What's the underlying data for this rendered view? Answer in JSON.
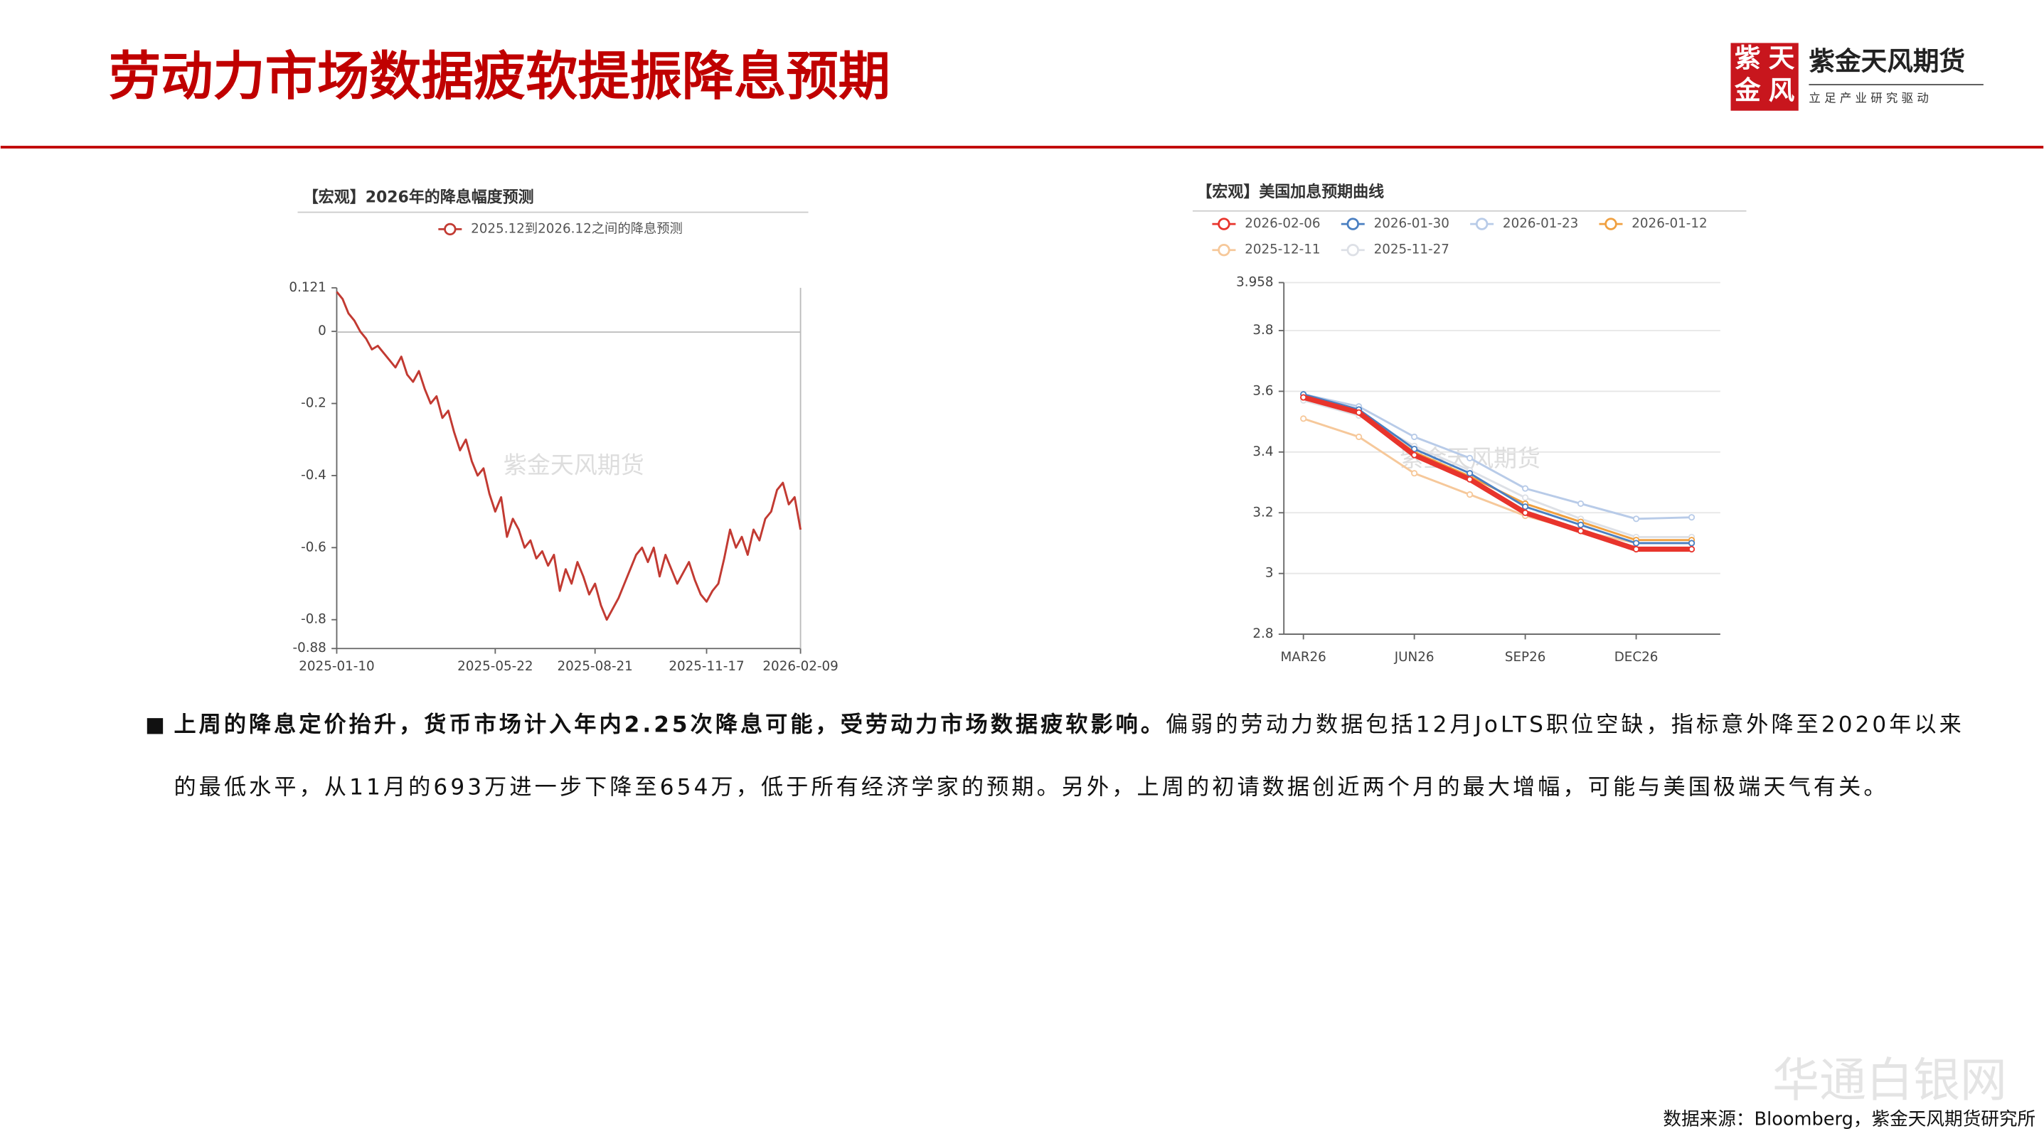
{
  "header": {
    "title": "劳动力市场数据疲软提振降息预期",
    "logo": {
      "seal": [
        "紫",
        "天",
        "金",
        "风"
      ],
      "name": "紫金天风期货",
      "slogan": "立 足 产 业 研 究 驱 动"
    }
  },
  "chart_data": [
    {
      "type": "line",
      "title": "【宏观】2026年的降息幅度预测",
      "watermark": "紫金天风期货",
      "categories": [
        "2025-01-10",
        null,
        null,
        null,
        null,
        null,
        null,
        null,
        null,
        null,
        null,
        null,
        null,
        null,
        null,
        null,
        null,
        null,
        null,
        null,
        null,
        null,
        null,
        null,
        null,
        null,
        null,
        "2025-05-22",
        null,
        null,
        null,
        null,
        null,
        null,
        null,
        null,
        null,
        null,
        null,
        null,
        null,
        null,
        null,
        null,
        "2025-08-21",
        null,
        null,
        null,
        null,
        null,
        null,
        null,
        null,
        null,
        null,
        null,
        null,
        null,
        null,
        null,
        null,
        null,
        null,
        "2025-11-17",
        null,
        null,
        null,
        null,
        null,
        null,
        null,
        null,
        null,
        null,
        null,
        null,
        null,
        null,
        null,
        "2026-02-09"
      ],
      "series": [
        {
          "name": "2025.12到2026.12之间的降息预测",
          "color": "#c23a32",
          "values": [
            0.11,
            0.09,
            0.05,
            0.03,
            0.0,
            -0.02,
            -0.05,
            -0.04,
            -0.06,
            -0.08,
            -0.1,
            -0.07,
            -0.12,
            -0.14,
            -0.11,
            -0.16,
            -0.2,
            -0.18,
            -0.24,
            -0.22,
            -0.28,
            -0.33,
            -0.3,
            -0.36,
            -0.4,
            -0.38,
            -0.45,
            -0.5,
            -0.46,
            -0.57,
            -0.52,
            -0.55,
            -0.6,
            -0.58,
            -0.63,
            -0.61,
            -0.65,
            -0.62,
            -0.72,
            -0.66,
            -0.7,
            -0.64,
            -0.68,
            -0.73,
            -0.7,
            -0.76,
            -0.8,
            -0.77,
            -0.74,
            -0.7,
            -0.66,
            -0.62,
            -0.6,
            -0.64,
            -0.6,
            -0.68,
            -0.62,
            -0.66,
            -0.7,
            -0.67,
            -0.64,
            -0.69,
            -0.73,
            -0.75,
            -0.72,
            -0.7,
            -0.63,
            -0.55,
            -0.6,
            -0.57,
            -0.62,
            -0.55,
            -0.58,
            -0.52,
            -0.5,
            -0.44,
            -0.42,
            -0.48,
            -0.46,
            -0.55
          ]
        }
      ],
      "ylim": [
        -0.88,
        0.121
      ],
      "yticks": [
        0.121,
        0,
        -0.2,
        -0.4,
        -0.6,
        -0.8,
        -0.88
      ],
      "grid": false,
      "markers": false
    },
    {
      "type": "line",
      "title": "【宏观】美国加息预期曲线",
      "watermark": "紫金天风期货",
      "categories": [
        "MAR26",
        null,
        "JUN26",
        null,
        "SEP26",
        null,
        "DEC26",
        null
      ],
      "series": [
        {
          "name": "2026-02-06",
          "color": "#e8342c",
          "values": [
            3.58,
            3.53,
            3.39,
            3.31,
            3.2,
            3.14,
            3.08,
            3.08
          ]
        },
        {
          "name": "2026-01-30",
          "color": "#4a7fc1",
          "values": [
            3.59,
            3.54,
            3.41,
            3.33,
            3.22,
            3.16,
            3.1,
            3.1
          ]
        },
        {
          "name": "2026-01-23",
          "color": "#b8cbe8",
          "values": [
            3.59,
            3.55,
            3.45,
            3.38,
            3.28,
            3.23,
            3.18,
            3.185
          ]
        },
        {
          "name": "2026-01-12",
          "color": "#f0a040",
          "values": [
            3.58,
            3.53,
            3.4,
            3.32,
            3.23,
            3.17,
            3.11,
            3.11
          ]
        },
        {
          "name": "2025-12-11",
          "color": "#f6c89a",
          "values": [
            3.51,
            3.45,
            3.33,
            3.26,
            3.19,
            3.14,
            3.1,
            3.1
          ]
        },
        {
          "name": "2025-11-27",
          "color": "#dde0e6",
          "values": [
            3.57,
            3.52,
            3.42,
            3.34,
            3.25,
            3.18,
            3.12,
            3.12
          ]
        }
      ],
      "ylim": [
        2.8,
        3.958
      ],
      "yticks": [
        3.958,
        3.8,
        3.6,
        3.4,
        3.2,
        3,
        2.8
      ],
      "grid": true,
      "markers": true
    }
  ],
  "body": {
    "bold": "上周的降息定价抬升，货币市场计入年内2.25次降息可能，受劳动力市场数据疲软影响。",
    "line1": "偏弱的劳动力数据包括12月JoLTS职位空缺，指标意外降至2020年以来",
    "line2": "的最低水平，从11月的693万进一步下降至654万，低于所有经济学家的预期。另外，上周的初请数据创近两个月的最大增幅，可能与美国极端天气有关。"
  },
  "source": "数据来源：Bloomberg，紫金天风期货研究所",
  "watermark": "华通白银网"
}
